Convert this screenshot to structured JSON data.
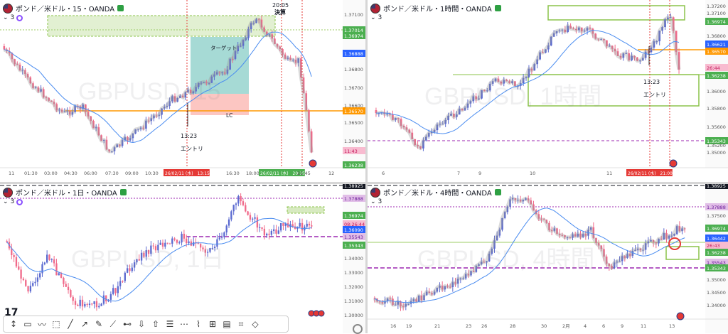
{
  "panels": [
    {
      "id": "p15",
      "title": "ポンド／米ドル・15・OANDA",
      "indicator_count": "3",
      "watermark": "GBPUSD, 15",
      "price_labels": [
        {
          "text": "1.37100",
          "type": "tick"
        },
        {
          "text": "1.37014",
          "type": "green"
        },
        {
          "text": "1.36974",
          "type": "green"
        },
        {
          "text": "1.36888",
          "type": "blue"
        },
        {
          "text": "1.36800",
          "type": "tick"
        },
        {
          "text": "1.36700",
          "type": "tick"
        },
        {
          "text": "1.36600",
          "type": "tick"
        },
        {
          "text": "1.36570",
          "type": "orange"
        },
        {
          "text": "1.36500",
          "type": "tick"
        },
        {
          "text": "1.36400",
          "type": "tick"
        },
        {
          "text": "11:43",
          "type": "pink"
        },
        {
          "text": "1.36238",
          "type": "green"
        }
      ],
      "time_labels": [
        "11",
        "01:30",
        "03:00",
        "04:30",
        "06:00",
        "07:30",
        "09:00",
        "10:30",
        "26/02/11 (水)　13:15",
        "16:30",
        "18:00",
        "26/02/11 (水)　20:15",
        "21:45",
        "12"
      ],
      "annotations": [
        "20:05",
        "決算",
        "ターゲット",
        "LC",
        "13:23",
        "エントリ"
      ]
    },
    {
      "id": "p1h",
      "title": "ポンド／米ドル・1時間・OANDA",
      "indicator_count": "3",
      "watermark": "GBPUSD, 1時間",
      "price_labels": [
        {
          "text": "1.37200",
          "type": "tick"
        },
        {
          "text": "1.37100",
          "type": "tick"
        },
        {
          "text": "1.36974",
          "type": "green"
        },
        {
          "text": "1.36800",
          "type": "tick"
        },
        {
          "text": "1.36621",
          "type": "blue"
        },
        {
          "text": "1.36570",
          "type": "orange"
        },
        {
          "text": "26:44",
          "type": "pink"
        },
        {
          "text": "1.36238",
          "type": "green"
        },
        {
          "text": "1.36000",
          "type": "tick"
        },
        {
          "text": "1.35800",
          "type": "tick"
        },
        {
          "text": "1.35600",
          "type": "tick"
        },
        {
          "text": "1.35343",
          "type": "green"
        },
        {
          "text": "1.35200",
          "type": "tick"
        },
        {
          "text": "1.35000",
          "type": "tick"
        }
      ],
      "time_labels": [
        "6",
        "7",
        "9",
        "10",
        "11",
        "26/02/11 (水)　21:00"
      ],
      "annotations": [
        "13:23",
        "エントリ"
      ]
    },
    {
      "id": "p1d",
      "title": "ポンド／米ドル・1日・OANDA",
      "indicator_count": "3",
      "watermark": "GBPUSD, 1日",
      "price_labels": [
        {
          "text": "1.38925",
          "type": "dark"
        },
        {
          "text": "1.37888",
          "type": "purple"
        },
        {
          "text": "1.36974",
          "type": "green"
        },
        {
          "text": "08:26:44",
          "type": "pink"
        },
        {
          "text": "1.36090",
          "type": "blue"
        },
        {
          "text": "1.35543",
          "type": "purple"
        },
        {
          "text": "1.35343",
          "type": "green"
        },
        {
          "text": "1.34000",
          "type": "tick"
        },
        {
          "text": "1.33000",
          "type": "tick"
        },
        {
          "text": "1.32000",
          "type": "tick"
        },
        {
          "text": "1.31000",
          "type": "tick"
        },
        {
          "text": "1.30000",
          "type": "tick"
        }
      ],
      "time_labels": [],
      "annotations": []
    },
    {
      "id": "p4h",
      "title": "ポンド／米ドル・4時間・OANDA",
      "indicator_count": "3",
      "watermark": "GBPUSD, 4時間",
      "price_labels": [
        {
          "text": "1.38925",
          "type": "dark"
        },
        {
          "text": "1.37888",
          "type": "purple"
        },
        {
          "text": "1.37500",
          "type": "tick"
        },
        {
          "text": "1.36974",
          "type": "green"
        },
        {
          "text": "1.36442",
          "type": "blue"
        },
        {
          "text": "26:43",
          "type": "pink"
        },
        {
          "text": "1.36238",
          "type": "green"
        },
        {
          "text": "1.35543",
          "type": "purple"
        },
        {
          "text": "1.35343",
          "type": "green"
        },
        {
          "text": "1.35000",
          "type": "tick"
        },
        {
          "text": "1.34500",
          "type": "tick"
        },
        {
          "text": "1.34000",
          "type": "tick"
        }
      ],
      "time_labels": [
        "16",
        "19",
        "21",
        "23",
        "26",
        "28",
        "30",
        "2月",
        "4",
        "6",
        "9",
        "11",
        "13"
      ],
      "annotations": []
    }
  ],
  "colors": {
    "up": "#5b6ad0",
    "down": "#f06a8a",
    "ma": "#4a8cf0",
    "orange": "#ff9800",
    "green_box": "#8bc34a",
    "purple": "#9c27b0",
    "red_line": "#e53935"
  },
  "toolbar_icons": [
    "cursor-icon",
    "rectangle-icon",
    "path-icon",
    "box-icon",
    "line-icon",
    "ray-icon",
    "brush-icon",
    "pen-icon",
    "ruler-icon",
    "arrow-down-icon",
    "arrow-up-icon",
    "fib-icon",
    "channel-icon",
    "pitchfork-icon",
    "gann-icon",
    "note-icon",
    "crop-icon",
    "eraser-icon"
  ]
}
